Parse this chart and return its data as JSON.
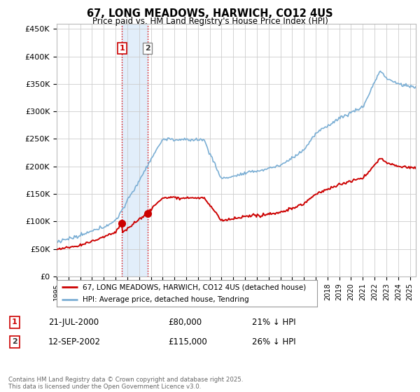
{
  "title": "67, LONG MEADOWS, HARWICH, CO12 4US",
  "subtitle": "Price paid vs. HM Land Registry's House Price Index (HPI)",
  "yticks": [
    0,
    50000,
    100000,
    150000,
    200000,
    250000,
    300000,
    350000,
    400000,
    450000
  ],
  "ytick_labels": [
    "£0",
    "£50K",
    "£100K",
    "£150K",
    "£200K",
    "£250K",
    "£300K",
    "£350K",
    "£400K",
    "£450K"
  ],
  "ylim": [
    0,
    460000
  ],
  "transaction1": {
    "date": "21-JUL-2000",
    "price": 80000,
    "hpi_pct": "21%"
  },
  "transaction2": {
    "date": "12-SEP-2002",
    "price": 115000,
    "hpi_pct": "26%"
  },
  "t1_x": 2000.54,
  "t2_x": 2002.71,
  "shade_color": "#d0e4f7",
  "shade_alpha": 0.6,
  "vline_color": "#dd0000",
  "legend1_label": "67, LONG MEADOWS, HARWICH, CO12 4US (detached house)",
  "legend2_label": "HPI: Average price, detached house, Tendring",
  "red_line_color": "#cc0000",
  "blue_line_color": "#7aaed4",
  "footer": "Contains HM Land Registry data © Crown copyright and database right 2025.\nThis data is licensed under the Open Government Licence v3.0.",
  "background_color": "#ffffff",
  "grid_color": "#cccccc",
  "xlim_left": 1995.0,
  "xlim_right": 2025.5
}
